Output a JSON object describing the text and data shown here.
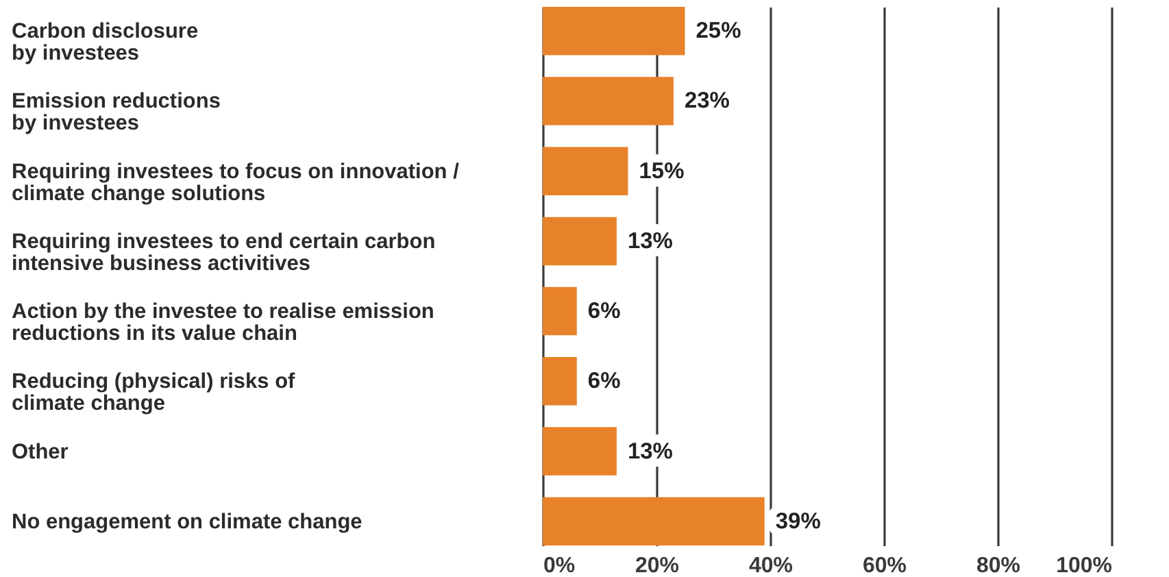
{
  "chart_data": {
    "type": "bar",
    "orientation": "horizontal",
    "categories": [
      "Carbon disclosure\nby investees",
      "Emission reductions\nby investees",
      "Requiring investees to focus on innovation /\nclimate change solutions",
      "Requiring investees to end certain carbon\nintensive business activitives",
      "Action by the investee to realise emission\nreductions in its value chain",
      "Reducing (physical) risks of\nclimate change",
      "Other",
      "No engagement on climate change"
    ],
    "values": [
      25,
      23,
      15,
      13,
      6,
      6,
      13,
      39
    ],
    "value_labels": [
      "25%",
      "23%",
      "15%",
      "13%",
      "6%",
      "6%",
      "13%",
      "39%"
    ],
    "color": "#e8822a",
    "xlim": [
      0,
      100
    ],
    "xticks": [
      {
        "value": 0,
        "label": "0%"
      },
      {
        "value": 20,
        "label": "20%"
      },
      {
        "value": 40,
        "label": "40%"
      },
      {
        "value": 60,
        "label": "60%"
      },
      {
        "value": 80,
        "label": "80%"
      },
      {
        "value": 100,
        "label": "100%"
      }
    ],
    "grid": "x"
  }
}
